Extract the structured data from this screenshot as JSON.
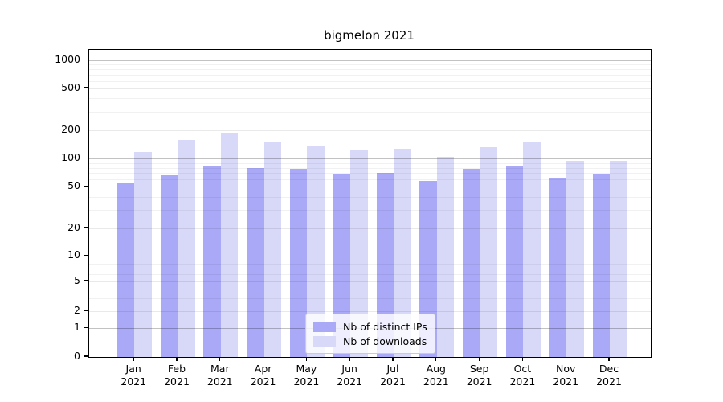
{
  "title": "bigmelon 2021",
  "chart_data": {
    "type": "bar",
    "title": "bigmelon 2021",
    "categories": [
      "Jan",
      "Feb",
      "Mar",
      "Apr",
      "May",
      "Jun",
      "Jul",
      "Aug",
      "Sep",
      "Oct",
      "Nov",
      "Dec"
    ],
    "category_year": "2021",
    "series": [
      {
        "name": "Nb of distinct IPs",
        "color": "#a9a9f7",
        "values": [
          54,
          66,
          84,
          79,
          77,
          67,
          70,
          58,
          77,
          84,
          61,
          67
        ]
      },
      {
        "name": "Nb of downloads",
        "color": "#d8d8f9",
        "values": [
          117,
          157,
          187,
          150,
          136,
          121,
          126,
          105,
          131,
          149,
          94,
          95
        ]
      }
    ],
    "xlabel": "",
    "ylabel": "",
    "yscale": "symlog",
    "yticks": [
      0,
      1,
      2,
      5,
      10,
      20,
      50,
      100,
      200,
      500,
      1000
    ],
    "ylim": [
      0,
      1200
    ],
    "grid": true,
    "legend_position": "lower center"
  }
}
